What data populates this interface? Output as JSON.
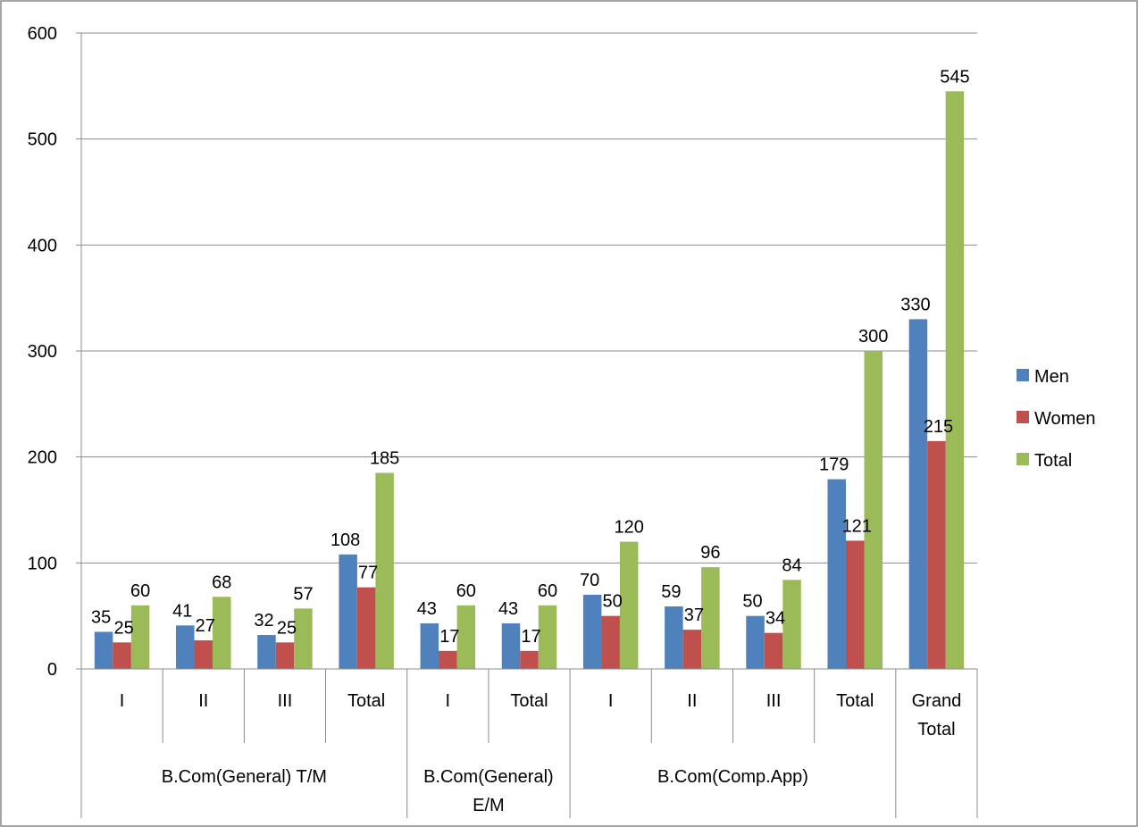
{
  "chart_data": {
    "type": "bar",
    "groups": [
      {
        "name": "B.Com(General) T/M",
        "categories": [
          "I",
          "II",
          "III",
          "Total"
        ]
      },
      {
        "name": "B.Com(General) E/M",
        "categories": [
          "I",
          "Total"
        ]
      },
      {
        "name": "B.Com(Comp.App)",
        "categories": [
          "I",
          "II",
          "III",
          "Total"
        ]
      },
      {
        "name": "",
        "categories": [
          "Grand Total"
        ]
      }
    ],
    "categories": [
      "I",
      "II",
      "III",
      "Total",
      "I",
      "Total",
      "I",
      "II",
      "III",
      "Total",
      "Grand Total"
    ],
    "series": [
      {
        "name": "Men",
        "color": "#4f81bd",
        "values": [
          35,
          41,
          32,
          108,
          43,
          43,
          70,
          59,
          50,
          179,
          330
        ]
      },
      {
        "name": "Women",
        "color": "#c0504d",
        "values": [
          25,
          27,
          25,
          77,
          17,
          17,
          50,
          37,
          34,
          121,
          215
        ]
      },
      {
        "name": "Total",
        "color": "#9bbb59",
        "values": [
          60,
          68,
          57,
          185,
          60,
          60,
          120,
          96,
          84,
          300,
          545
        ]
      }
    ],
    "ylim": [
      0,
      600
    ],
    "yticks": [
      0,
      100,
      200,
      300,
      400,
      500,
      600
    ],
    "grid": true,
    "legend": "right",
    "title": "",
    "xlabel": "",
    "ylabel": ""
  }
}
